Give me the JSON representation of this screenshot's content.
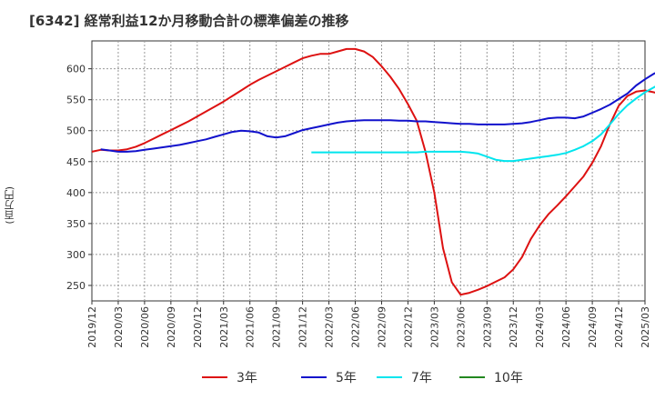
{
  "chart_data": {
    "type": "line",
    "title": "[6342]  経常利益12か月移動合計の標準偏差の推移",
    "ylabel": "(百万円)",
    "xlabel": "",
    "ylim": [
      225,
      645
    ],
    "yticks": [
      250,
      300,
      350,
      400,
      450,
      500,
      550,
      600
    ],
    "x_tick_labels": [
      "2019/12",
      "2020/03",
      "2020/06",
      "2020/09",
      "2020/12",
      "2021/03",
      "2021/06",
      "2021/09",
      "2021/12",
      "2022/03",
      "2022/06",
      "2022/09",
      "2022/12",
      "2023/03",
      "2023/06",
      "2023/09",
      "2023/12",
      "2024/03",
      "2024/06",
      "2024/09",
      "2024/12",
      "2025/03"
    ],
    "grid": true,
    "legend_position": "bottom",
    "series": [
      {
        "name": "3年",
        "color": "#dd1111",
        "start": "2019/12",
        "values": [
          466,
          469,
          468,
          468,
          470,
          474,
          480,
          487,
          494,
          501,
          508,
          515,
          523,
          531,
          539,
          547,
          556,
          565,
          574,
          582,
          589,
          596,
          603,
          610,
          617,
          621,
          624,
          624,
          628,
          632,
          632,
          628,
          619,
          604,
          587,
          567,
          543,
          516,
          466,
          400,
          310,
          255,
          235,
          238,
          243,
          249,
          256,
          263,
          276,
          296,
          325,
          347,
          365,
          379,
          394,
          410,
          426,
          448,
          475,
          510,
          540,
          556,
          563,
          565,
          562,
          558,
          550
        ]
      },
      {
        "name": "5年",
        "color": "#1111cc",
        "start": "2020/01",
        "values": [
          470,
          468,
          466,
          466,
          467,
          469,
          471,
          473,
          475,
          477,
          480,
          483,
          486,
          490,
          494,
          498,
          500,
          499,
          497,
          491,
          489,
          491,
          496,
          501,
          504,
          507,
          510,
          513,
          515,
          516,
          517,
          517,
          517,
          517,
          516,
          516,
          515,
          515,
          514,
          513,
          512,
          511,
          511,
          510,
          510,
          510,
          510,
          511,
          512,
          514,
          517,
          520,
          521,
          521,
          520,
          523,
          529,
          535,
          542,
          551,
          560,
          573,
          583,
          592,
          599,
          603,
          604,
          602,
          597
        ]
      },
      {
        "name": "7年",
        "color": "#00e5ee",
        "start": "2022/01",
        "values": [
          465,
          465,
          465,
          465,
          465,
          465,
          465,
          465,
          465,
          465,
          465,
          465,
          465,
          466,
          466,
          466,
          466,
          466,
          465,
          463,
          458,
          453,
          451,
          451,
          453,
          455,
          457,
          459,
          461,
          464,
          469,
          475,
          483,
          494,
          510,
          527,
          541,
          552,
          562,
          570,
          578,
          584,
          590
        ]
      },
      {
        "name": "10年",
        "color": "#22881f",
        "start": "2025/03",
        "values": []
      }
    ]
  }
}
